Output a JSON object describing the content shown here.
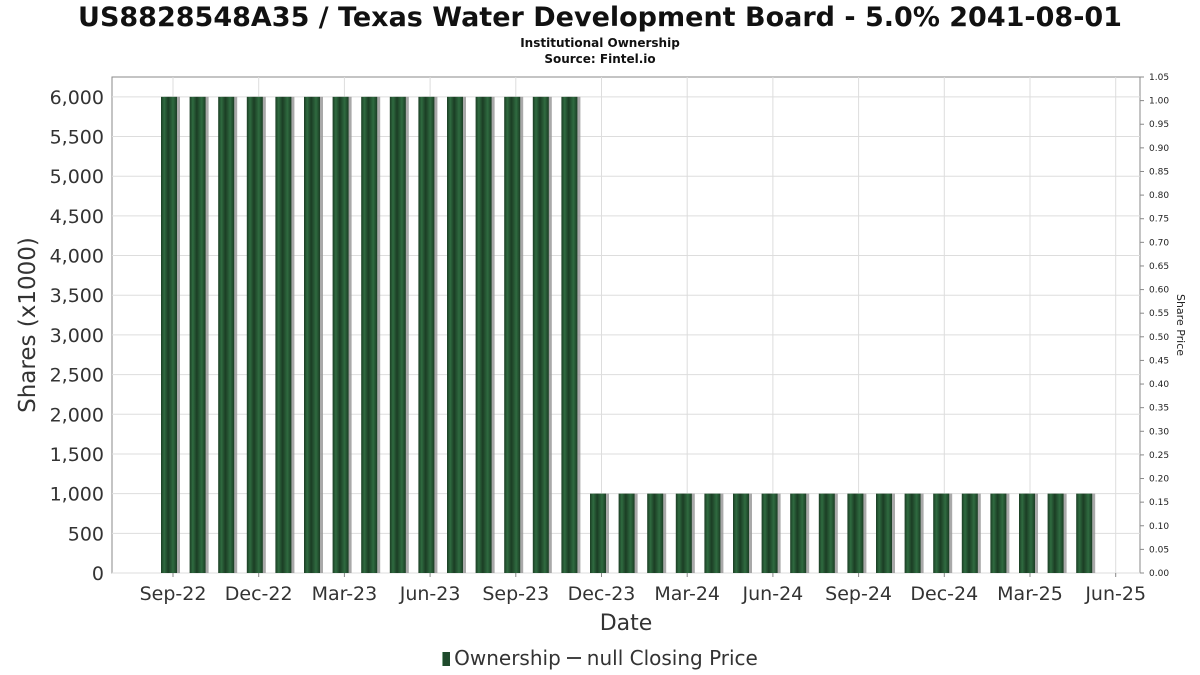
{
  "title": "US8828548A35 / Texas Water Development Board - 5.0% 2041-08-01",
  "subtitle_line1": "Institutional Ownership",
  "subtitle_line2": "Source: Fintel.io",
  "legend": {
    "ownership_label": "Ownership",
    "price_label": "null Closing Price"
  },
  "colors": {
    "bar_dark": "#1b3d24",
    "bar_mid": "#2f6b40",
    "bar_shadow": "#9a9a9a",
    "grid": "#dddddd",
    "axis_text": "#333333"
  },
  "chart_data": {
    "type": "bar",
    "xlabel": "Date",
    "ylabel": "Shares (x1000)",
    "y2label": "Share Price",
    "ylim": [
      0,
      6250
    ],
    "y2lim": [
      0,
      1.05
    ],
    "yticks": [
      "0",
      "500",
      "1,000",
      "1,500",
      "2,000",
      "2,500",
      "3,000",
      "3,500",
      "4,000",
      "4,500",
      "5,000",
      "5,500",
      "6,000"
    ],
    "y2ticks": [
      "0.00",
      "0.05",
      "0.10",
      "0.15",
      "0.20",
      "0.25",
      "0.30",
      "0.35",
      "0.40",
      "0.45",
      "0.50",
      "0.55",
      "0.60",
      "0.65",
      "0.70",
      "0.75",
      "0.80",
      "0.85",
      "0.90",
      "0.95",
      "1.00",
      "1.05"
    ],
    "xticks": [
      "Sep-22",
      "Dec-22",
      "Mar-23",
      "Jun-23",
      "Sep-23",
      "Dec-23",
      "Mar-24",
      "Jun-24",
      "Sep-24",
      "Dec-24",
      "Mar-25",
      "Jun-25"
    ],
    "grid": true,
    "series": [
      {
        "name": "Ownership",
        "values": [
          6000,
          6000,
          6000,
          6000,
          6000,
          6000,
          6000,
          6000,
          6000,
          6000,
          6000,
          6000,
          6000,
          6000,
          6000,
          1000,
          1000,
          1000,
          1000,
          1000,
          1000,
          1000,
          1000,
          1000,
          1000,
          1000,
          1000,
          1000,
          1000,
          1000,
          1000,
          1000,
          1000
        ]
      }
    ]
  }
}
